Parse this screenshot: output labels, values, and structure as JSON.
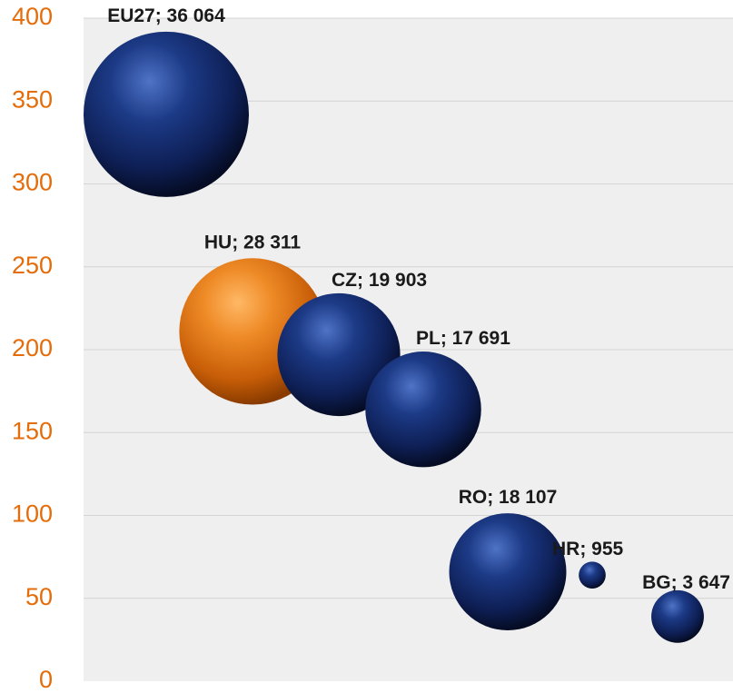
{
  "chart_data": {
    "type": "bubble",
    "title": "",
    "xlabel": "",
    "ylabel": "",
    "ylim": [
      0,
      400
    ],
    "yticks": [
      "0",
      "50",
      "100",
      "150",
      "200",
      "250",
      "300",
      "350",
      "400"
    ],
    "grid": true,
    "legend": "none",
    "colors": {
      "plot_background": "#efefef",
      "gridline": "#d4d4d4",
      "tick_label": "#e46c0a",
      "default_bubble": "#1f3a7a",
      "highlight_bubble": "#e0761b"
    },
    "points": [
      {
        "code": "EU27",
        "x": 1,
        "y": 342,
        "size": 36064,
        "label": "EU27; 36 064",
        "highlight": false
      },
      {
        "code": "HU",
        "x": 2,
        "y": 211,
        "size": 28311,
        "label": "HU; 28 311",
        "highlight": true
      },
      {
        "code": "CZ",
        "x": 3,
        "y": 197,
        "size": 19903,
        "label": "CZ; 19 903",
        "highlight": false
      },
      {
        "code": "PL",
        "x": 4,
        "y": 164,
        "size": 17691,
        "label": "PL; 17 691",
        "highlight": false
      },
      {
        "code": "RO",
        "x": 5,
        "y": 66,
        "size": 18107,
        "label": "RO; 18 107",
        "highlight": false
      },
      {
        "code": "HR",
        "x": 6,
        "y": 64,
        "size": 955,
        "label": "HR; 955",
        "highlight": false
      },
      {
        "code": "BG",
        "x": 7,
        "y": 39,
        "size": 3647,
        "label": "BG; 3 647",
        "highlight": false
      }
    ]
  }
}
